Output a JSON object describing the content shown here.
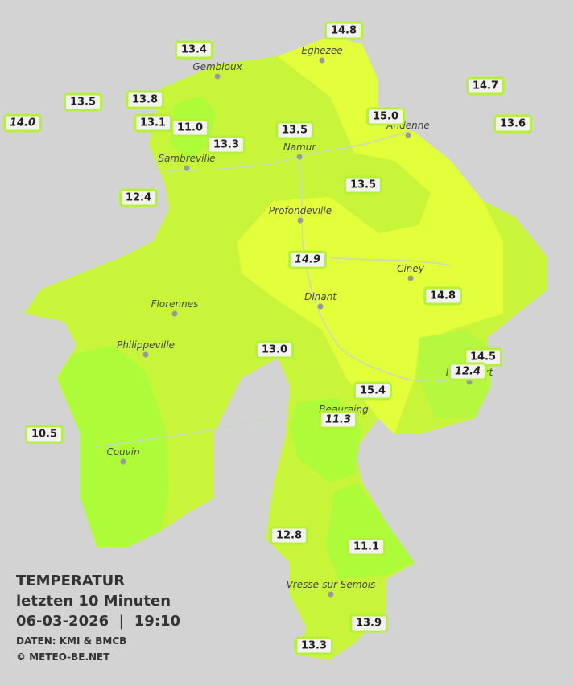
{
  "title": {
    "line1": "TEMPERATUR",
    "line2": "letzten 10 Minuten",
    "line3": "06-03-2026  |  19:10",
    "source": "DATEN: KMI & BMCB",
    "copyright": "© METEO-BE.NET"
  },
  "cities": [
    "Eghezee",
    "Gembloux",
    "Andenne",
    "Namur",
    "Sambreville",
    "Profondeville",
    "Ciney",
    "Dinant",
    "Florennes",
    "Philippeville",
    "Rochefort",
    "Beauraing",
    "Couvin",
    "Vresse-sur-Semois"
  ],
  "stations": [
    {
      "label": "14.8",
      "italic": false
    },
    {
      "label": "13.4",
      "italic": false
    },
    {
      "label": "14.7",
      "italic": false
    },
    {
      "label": "13.5",
      "italic": false
    },
    {
      "label": "13.8",
      "italic": false
    },
    {
      "label": "14.0",
      "italic": true
    },
    {
      "label": "13.1",
      "italic": false
    },
    {
      "label": "11.0",
      "italic": false
    },
    {
      "label": "15.0",
      "italic": false
    },
    {
      "label": "13.6",
      "italic": false
    },
    {
      "label": "13.5",
      "italic": false
    },
    {
      "label": "13.3",
      "italic": false
    },
    {
      "label": "13.5",
      "italic": false
    },
    {
      "label": "12.4",
      "italic": false
    },
    {
      "label": "14.9",
      "italic": true
    },
    {
      "label": "14.8",
      "italic": false
    },
    {
      "label": "13.0",
      "italic": false
    },
    {
      "label": "14.5",
      "italic": false
    },
    {
      "label": "12.4",
      "italic": true
    },
    {
      "label": "15.4",
      "italic": false
    },
    {
      "label": "11.3",
      "italic": true
    },
    {
      "label": "10.5",
      "italic": false
    },
    {
      "label": "12.8",
      "italic": false
    },
    {
      "label": "11.1",
      "italic": false
    },
    {
      "label": "13.9",
      "italic": false
    },
    {
      "label": "13.3",
      "italic": false
    }
  ]
}
